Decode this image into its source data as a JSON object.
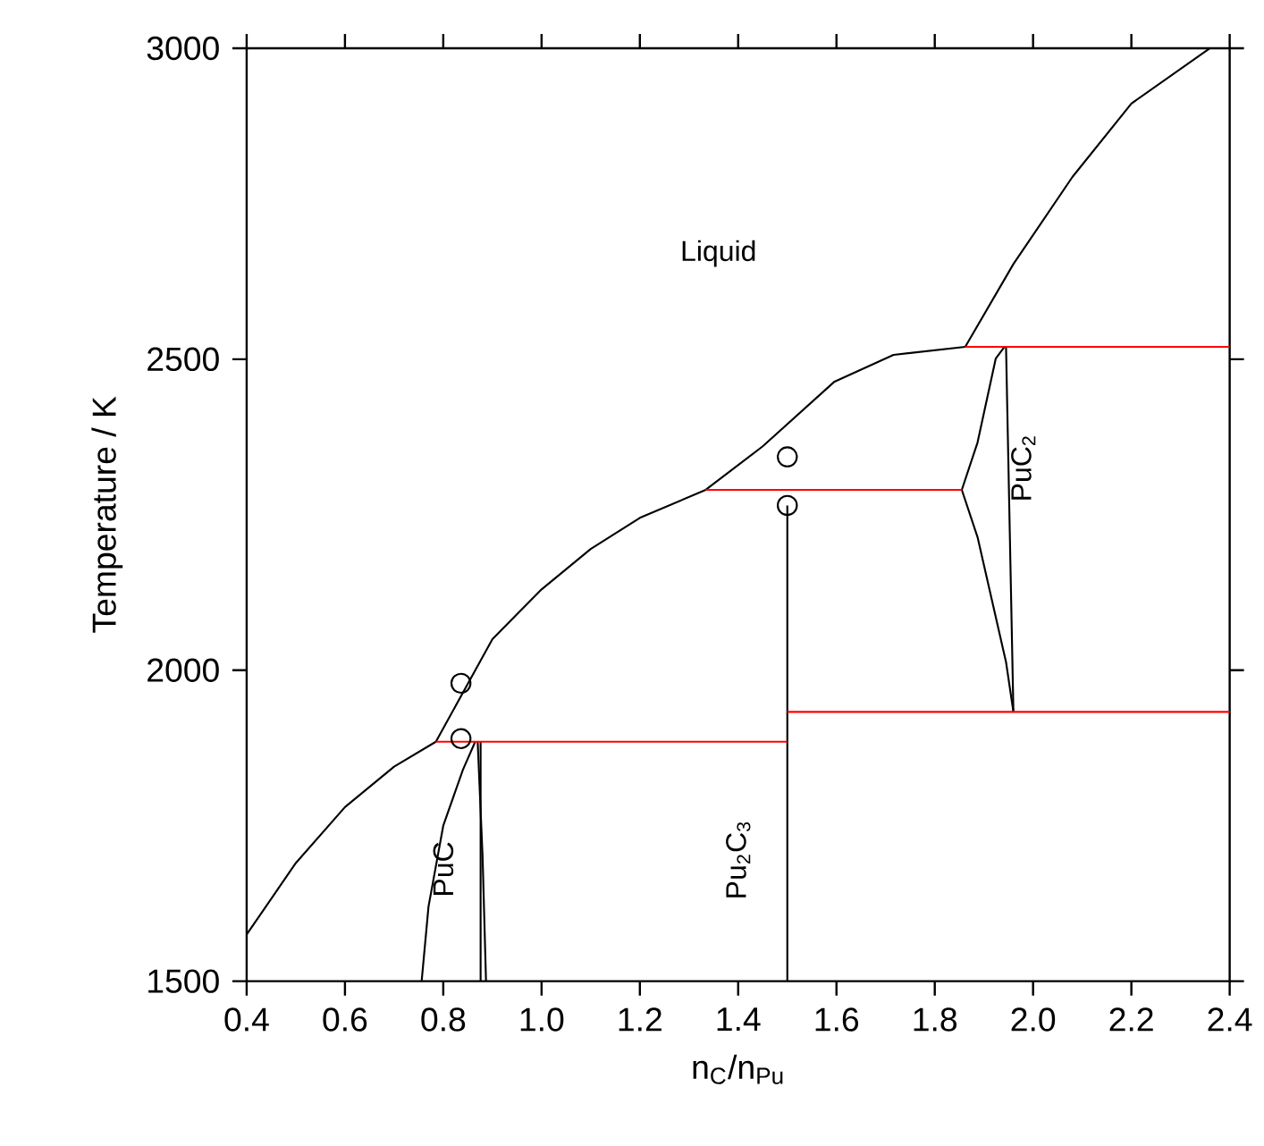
{
  "chart_data": {
    "type": "line",
    "xlabel": "n$_{C}$/n$_{Pu}$",
    "ylabel": "Temperature / K",
    "xlim": [
      0.4,
      2.4
    ],
    "ylim": [
      1500,
      3000
    ],
    "xticks": [
      0.4,
      0.6,
      0.8,
      {
        "value": 1.0,
        "label": "1.0"
      },
      1.2,
      1.4,
      1.6,
      1.8,
      {
        "value": 2.0,
        "label": "2.0"
      },
      2.2,
      2.4
    ],
    "yticks": [
      1500,
      2000,
      2500,
      3000
    ],
    "marker": "none",
    "grid": false,
    "series": [
      {
        "color": "#000000",
        "x": [
          0.4,
          0.5,
          0.6,
          0.7,
          0.785
        ],
        "values": [
          1575,
          1690,
          1780,
          1845,
          1885
        ]
      },
      {
        "color": "#000000",
        "x": [
          0.785,
          0.9,
          1.0,
          1.1,
          1.2,
          1.334,
          1.45,
          1.596,
          1.716,
          1.862
        ],
        "values": [
          1885,
          2050,
          2130,
          2195,
          2245,
          2290,
          2360,
          2464,
          2507,
          2520
        ]
      },
      {
        "color": "#000000",
        "x": [
          1.862,
          1.96,
          2.08,
          2.2,
          2.36
        ],
        "values": [
          2520,
          2653,
          2793,
          2911,
          3000
        ]
      },
      {
        "color": "#000000",
        "x": [
          0.756,
          0.77,
          0.8,
          0.84,
          0.865
        ],
        "values": [
          1500,
          1620,
          1750,
          1840,
          1885
        ]
      },
      {
        "color": "#000000",
        "x": [
          0.87,
          0.88,
          0.887
        ],
        "values": [
          1885,
          1700,
          1500
        ]
      },
      {
        "color": "#000000",
        "x": [
          0.876,
          0.876
        ],
        "values": [
          1885,
          1500
        ]
      },
      {
        "color": "#000000",
        "x": [
          1.5,
          1.5
        ],
        "values": [
          1500,
          2265
        ]
      },
      {
        "color": "#000000",
        "x": [
          1.855,
          1.887,
          1.924,
          1.942
        ],
        "values": [
          2290,
          2366,
          2501,
          2520
        ]
      },
      {
        "color": "#000000",
        "x": [
          1.855,
          1.887,
          1.945,
          1.96
        ],
        "values": [
          2290,
          2214,
          2013,
          1933
        ]
      },
      {
        "color": "#000000",
        "x": [
          1.945,
          1.96
        ],
        "values": [
          2520,
          1933
        ]
      },
      {
        "color": "#ff0000",
        "x": [
          0.785,
          1.5
        ],
        "values": [
          1885,
          1885
        ]
      },
      {
        "color": "#ff0000",
        "x": [
          1.5,
          2.4
        ],
        "values": [
          1933,
          1933
        ]
      },
      {
        "color": "#ff0000",
        "x": [
          1.334,
          1.855
        ],
        "values": [
          2290,
          2290
        ]
      },
      {
        "color": "#ff0000",
        "x": [
          1.862,
          2.4
        ],
        "values": [
          2520,
          2520
        ]
      },
      {
        "type": "scatter",
        "marker": "circle",
        "color": "#000000",
        "x": [
          0.836,
          0.836,
          1.5,
          1.5
        ],
        "values": [
          1979,
          1890,
          2265,
          2343
        ]
      }
    ],
    "annotations": [
      "Liquid",
      "PuC",
      "Pu$_{2}$C$_{3}$",
      "PuC$_{2}$"
    ]
  }
}
